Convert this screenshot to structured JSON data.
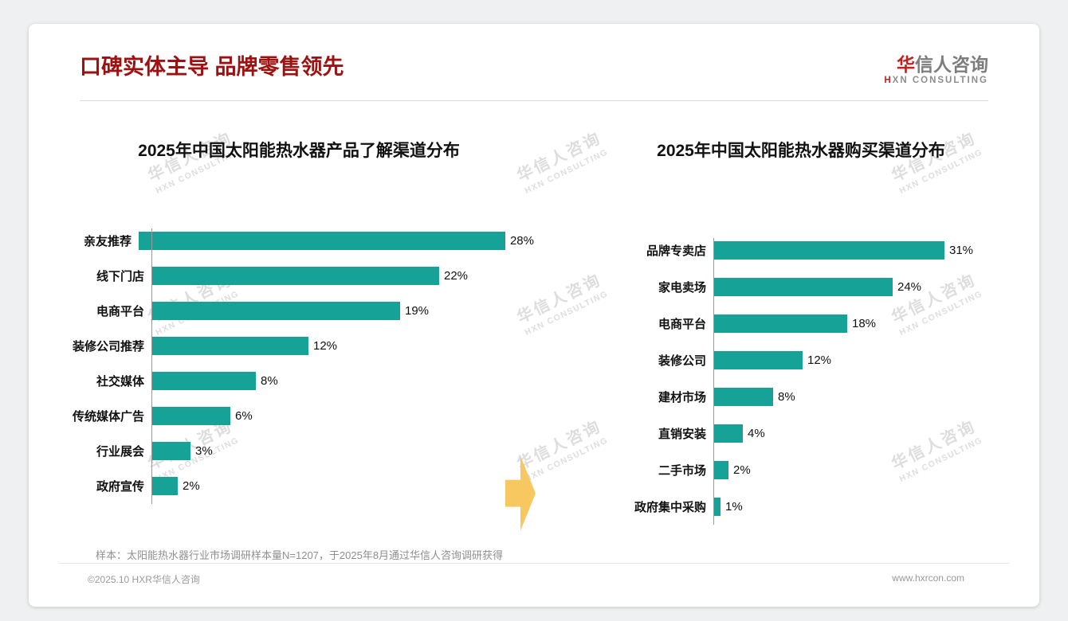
{
  "page": {
    "title": "口碑实体主导 品牌零售领先",
    "footnote": "样本：太阳能热水器行业市场调研样本量N=1207，于2025年8月通过华信人咨询调研获得",
    "footer_left": "©2025.10 HXR华信人咨询",
    "footer_right": "www.hxrcon.com"
  },
  "logo": {
    "cn_accent": "华",
    "cn_rest": "信人咨询",
    "en_accent": "H",
    "en_rest": "XN CONSULTING"
  },
  "watermark": {
    "line1": "华信人咨询",
    "line2": "HXN CONSULTING"
  },
  "colors": {
    "title_red": "#9E1111",
    "logo_red": "#C81E1E",
    "bar_teal": "#16A296",
    "arrow_gold": "#F6C85F"
  },
  "chart_data": [
    {
      "type": "bar",
      "orientation": "horizontal",
      "title": "2025年中国太阳能热水器产品了解渠道分布",
      "categories": [
        "亲友推荐",
        "线下门店",
        "电商平台",
        "装修公司推荐",
        "社交媒体",
        "传统媒体广告",
        "行业展会",
        "政府宣传"
      ],
      "values": [
        28,
        22,
        19,
        12,
        8,
        6,
        3,
        2
      ],
      "value_suffix": "%",
      "xlim": [
        0,
        30
      ],
      "grid": false,
      "legend": "none"
    },
    {
      "type": "bar",
      "orientation": "horizontal",
      "title": "2025年中国太阳能热水器购买渠道分布",
      "categories": [
        "品牌专卖店",
        "家电卖场",
        "电商平台",
        "装修公司",
        "建材市场",
        "直销安装",
        "二手市场",
        "政府集中采购"
      ],
      "values": [
        31,
        24,
        18,
        12,
        8,
        4,
        2,
        1
      ],
      "value_suffix": "%",
      "xlim": [
        0,
        33
      ],
      "grid": false,
      "legend": "none"
    }
  ]
}
